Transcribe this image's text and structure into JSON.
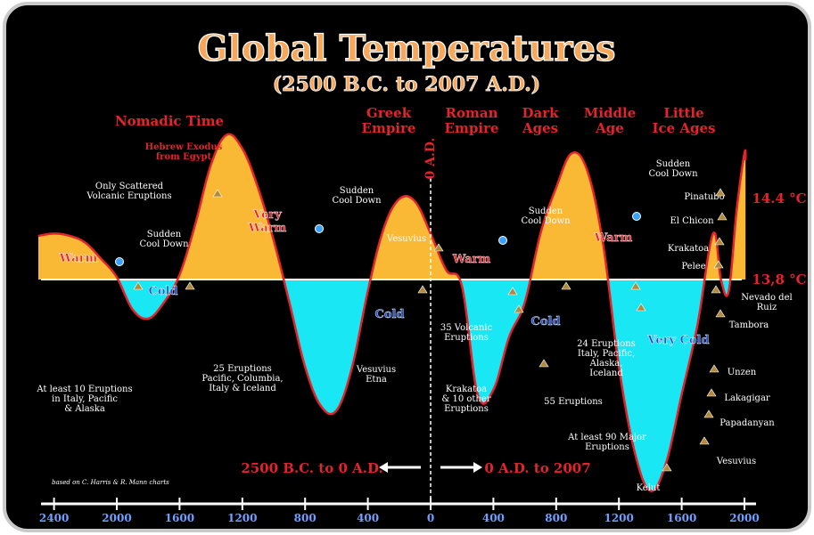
{
  "chart_data": {
    "type": "area",
    "title": "Global Temperatures",
    "subtitle": "(2500 B.C. to 2007 A.D.)",
    "x_ticks": [
      "2400",
      "2000",
      "1600",
      "1200",
      "800",
      "400",
      "0",
      "400",
      "800",
      "1200",
      "1600",
      "2000"
    ],
    "baseline_label": "13,8 °C",
    "peak_label": "14.4 °C",
    "divider_label": "0 A.D.",
    "range_bc": "2500 B.C. to 0 A.D.",
    "range_ad": "0 A.D. to 2007",
    "credit": "based on C. Harris & R. Mann charts",
    "colors": {
      "warm": "#f9b934",
      "cold": "#19e8f4",
      "curve": "#e4232c",
      "label": "#e4232c",
      "cold_label": "#1f52c8"
    },
    "series": [
      {
        "x": [
          -2500,
          -2400,
          -2300,
          -2200,
          -2100,
          -2000,
          -1900,
          -1800,
          -1700,
          -1600,
          -1500,
          -1400,
          -1300,
          -1200,
          -1100,
          -1000,
          -900,
          -800,
          -700,
          -600,
          -500,
          -400,
          -300,
          -200,
          -100,
          0,
          100,
          200,
          300,
          400,
          500,
          600,
          700,
          800,
          900,
          1000,
          1100,
          1200,
          1300,
          1400,
          1500,
          1600,
          1700,
          1800,
          1850,
          1900,
          1950,
          2000,
          2007
        ],
        "y": [
          0.19,
          0.2,
          0.19,
          0.16,
          0.09,
          0.01,
          -0.13,
          -0.17,
          -0.1,
          0.02,
          0.24,
          0.5,
          0.63,
          0.57,
          0.4,
          0.17,
          -0.1,
          -0.38,
          -0.55,
          -0.57,
          -0.38,
          -0.05,
          0.22,
          0.35,
          0.34,
          0.2,
          0.04,
          -0.03,
          -0.5,
          -0.48,
          -0.25,
          -0.1,
          0.2,
          0.4,
          0.55,
          0.47,
          0.15,
          -0.38,
          -0.75,
          -0.92,
          -0.8,
          -0.5,
          -0.2,
          0.2,
          0.0,
          -0.05,
          0.3,
          0.55,
          0.52
        ]
      }
    ],
    "regions": [
      {
        "label": "Warm"
      },
      {
        "label": "Cold"
      },
      {
        "label": "Very Warm"
      },
      {
        "label": "Cold"
      },
      {
        "label": "Warm"
      },
      {
        "label": "Cold"
      },
      {
        "label": "Warm"
      },
      {
        "label": "Very Cold"
      }
    ],
    "periods": [
      {
        "label": "Nomadic Time"
      },
      {
        "label": "Greek Empire"
      },
      {
        "label": "Roman Empire"
      },
      {
        "label": "Dark Ages"
      },
      {
        "label": "Middle Age"
      },
      {
        "label": "Little Ice Ages"
      }
    ],
    "annotations": [
      "Hebrew Exodus from Egypt",
      "Only Scattered Volcanic Eruptions",
      "Sudden Cool Down",
      "Sudden Cool Down",
      "Sudden Cool Down",
      "Sudden Cool Down",
      "At least 10 Eruptions in Italy, Pacific & Alaska",
      "25 Eruptions Pacific, Columbia, Italy & Iceland",
      "Vesuvius Etna",
      "35 Volcanic Eruptions",
      "Krakatoa & 10 other Eruptions",
      "55 Eruptions",
      "24 Eruptions Italy, Pacific, Alaska, Iceland",
      "At least 90 Major Eruptions"
    ],
    "volcanoes": [
      "Vesuvius",
      "Pinatubo",
      "El Chicon",
      "Krakatoa",
      "Pelee",
      "Nevado del Ruiz",
      "Tambora",
      "Unzen",
      "Lakagigar",
      "Papadanyan",
      "Vesuvius",
      "Kelut"
    ]
  }
}
